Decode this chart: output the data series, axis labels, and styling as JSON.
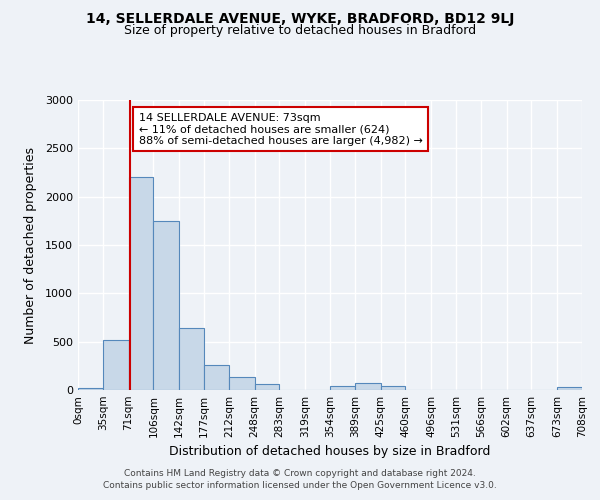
{
  "title1": "14, SELLERDALE AVENUE, WYKE, BRADFORD, BD12 9LJ",
  "title2": "Size of property relative to detached houses in Bradford",
  "xlabel": "Distribution of detached houses by size in Bradford",
  "ylabel": "Number of detached properties",
  "bin_edges": [
    0,
    35,
    71,
    106,
    142,
    177,
    212,
    248,
    283,
    319,
    354,
    389,
    425,
    460,
    496,
    531,
    566,
    602,
    637,
    673,
    708
  ],
  "bin_labels": [
    "0sqm",
    "35sqm",
    "71sqm",
    "106sqm",
    "142sqm",
    "177sqm",
    "212sqm",
    "248sqm",
    "283sqm",
    "319sqm",
    "354sqm",
    "389sqm",
    "425sqm",
    "460sqm",
    "496sqm",
    "531sqm",
    "566sqm",
    "602sqm",
    "637sqm",
    "673sqm",
    "708sqm"
  ],
  "counts": [
    20,
    520,
    2200,
    1750,
    640,
    260,
    130,
    65,
    0,
    0,
    40,
    75,
    45,
    0,
    0,
    0,
    0,
    0,
    0,
    35
  ],
  "bar_color": "#c8d8e8",
  "bar_edge_color": "#5588bb",
  "vline_x": 73,
  "vline_color": "#cc0000",
  "ylim": [
    0,
    3000
  ],
  "yticks": [
    0,
    500,
    1000,
    1500,
    2000,
    2500,
    3000
  ],
  "annotation_line1": "14 SELLERDALE AVENUE: 73sqm",
  "annotation_line2": "← 11% of detached houses are smaller (624)",
  "annotation_line3": "88% of semi-detached houses are larger (4,982) →",
  "annotation_box_color": "#ffffff",
  "annotation_box_edge_color": "#cc0000",
  "footer1": "Contains HM Land Registry data © Crown copyright and database right 2024.",
  "footer2": "Contains public sector information licensed under the Open Government Licence v3.0.",
  "background_color": "#eef2f7",
  "grid_color": "#ffffff"
}
